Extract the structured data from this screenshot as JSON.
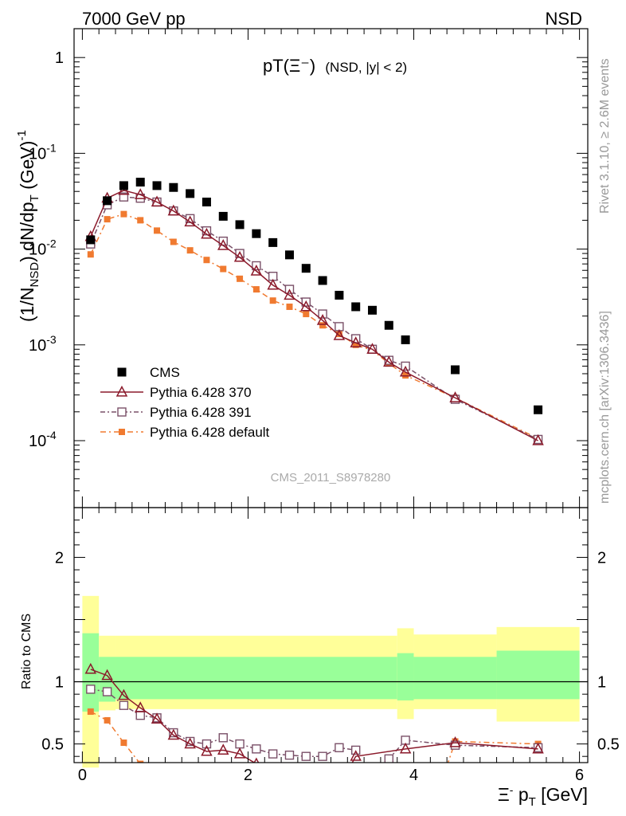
{
  "header": {
    "left": "7000 GeV pp",
    "right": "NSD"
  },
  "side_labels": {
    "rivet": "Rivet 3.1.10, ≥ 2.6M events",
    "mcplots": "mcplots.cern.ch [arXiv:1306.3436]"
  },
  "plot": {
    "title_main": "pT(Ξ⁻)",
    "title_sub": "(NSD, |y| < 2)",
    "watermark": "CMS_2011_S8978280",
    "ylabel": "(1/N_NSD) dN/dp_T (GeV)^-1",
    "xlabel": "Ξ⁻ p_T [GeV]",
    "ratio_ylabel": "Ratio to CMS"
  },
  "legend": [
    {
      "name": "CMS",
      "color": "#000000",
      "marker": "square-filled"
    },
    {
      "name": "Pythia 6.428 370",
      "color": "#8b1a2b",
      "marker": "triangle-open"
    },
    {
      "name": "Pythia 6.428 391",
      "color": "#7a5068",
      "marker": "square-open"
    },
    {
      "name": "Pythia 6.428 default",
      "color": "#f07a30",
      "marker": "square-filled-small"
    }
  ],
  "chart_data": {
    "type": "scatter",
    "xlim": [
      -0.1,
      6.1
    ],
    "ylim": [
      2e-05,
      2
    ],
    "yscale": "log",
    "xticks": [
      0,
      2,
      4,
      6
    ],
    "yticks": [
      "1",
      "10^-1",
      "10^-2",
      "10^-3",
      "10^-4"
    ],
    "series": [
      {
        "name": "CMS",
        "x": [
          0.1,
          0.3,
          0.5,
          0.7,
          0.9,
          1.1,
          1.3,
          1.5,
          1.7,
          1.9,
          2.1,
          2.3,
          2.5,
          2.7,
          2.9,
          3.1,
          3.3,
          3.5,
          3.7,
          3.9,
          4.5,
          5.5
        ],
        "y": [
          0.0125,
          0.032,
          0.046,
          0.05,
          0.046,
          0.044,
          0.038,
          0.031,
          0.022,
          0.018,
          0.0145,
          0.0117,
          0.0087,
          0.0063,
          0.0047,
          0.0033,
          0.0025,
          0.0023,
          0.0016,
          0.00113,
          0.00055,
          0.00021
        ]
      },
      {
        "name": "Pythia 6.428 370",
        "x": [
          0.1,
          0.3,
          0.5,
          0.7,
          0.9,
          1.1,
          1.3,
          1.5,
          1.7,
          1.9,
          2.1,
          2.3,
          2.5,
          2.7,
          2.9,
          3.1,
          3.3,
          3.5,
          3.7,
          3.9,
          4.5,
          5.5
        ],
        "y": [
          0.0135,
          0.034,
          0.041,
          0.037,
          0.031,
          0.025,
          0.0192,
          0.0143,
          0.0109,
          0.0082,
          0.0059,
          0.0042,
          0.0033,
          0.0025,
          0.0018,
          0.00125,
          0.00105,
          0.0009,
          0.00066,
          0.00052,
          0.00028,
          0.0001
        ]
      },
      {
        "name": "Pythia 6.428 391",
        "x": [
          0.1,
          0.3,
          0.5,
          0.7,
          0.9,
          1.1,
          1.3,
          1.5,
          1.7,
          1.9,
          2.1,
          2.3,
          2.5,
          2.7,
          2.9,
          3.1,
          3.3,
          3.5,
          3.7,
          3.9,
          4.5,
          5.5
        ],
        "y": [
          0.0113,
          0.029,
          0.035,
          0.034,
          0.031,
          0.025,
          0.0208,
          0.0155,
          0.0121,
          0.009,
          0.0067,
          0.0052,
          0.0038,
          0.0028,
          0.0021,
          0.00155,
          0.00116,
          0.0009,
          0.00069,
          0.0006,
          0.00027,
          0.000103
        ]
      },
      {
        "name": "Pythia 6.428 default",
        "x": [
          0.1,
          0.3,
          0.5,
          0.7,
          0.9,
          1.1,
          1.3,
          1.5,
          1.7,
          1.9,
          2.1,
          2.3,
          2.5,
          2.7,
          2.9,
          3.1,
          3.3,
          3.5,
          3.7,
          3.9,
          4.5,
          5.5
        ],
        "y": [
          0.0088,
          0.0205,
          0.0232,
          0.02,
          0.0156,
          0.0119,
          0.0097,
          0.0077,
          0.0062,
          0.0049,
          0.0038,
          0.0029,
          0.0025,
          0.0021,
          0.0016,
          0.0013,
          0.001,
          0.00088,
          0.00064,
          0.00048,
          0.00028,
          0.000105
        ]
      }
    ],
    "ratio": {
      "ylim": [
        0.35,
        2.4
      ],
      "yticks": [
        0.5,
        1,
        2
      ],
      "band_bins": [
        {
          "x": [
            0.0,
            0.2
          ],
          "inner": [
            0.76,
            1.39
          ],
          "outer": [
            0.31,
            1.69
          ]
        },
        {
          "x": [
            0.2,
            0.4
          ],
          "inner": [
            0.84,
            1.2
          ],
          "outer": [
            0.77,
            1.37
          ]
        },
        {
          "x": [
            0.4,
            3.8
          ],
          "inner": [
            0.86,
            1.2
          ],
          "outer": [
            0.78,
            1.37
          ]
        },
        {
          "x": [
            3.8,
            4.0
          ],
          "inner": [
            0.85,
            1.23
          ],
          "outer": [
            0.7,
            1.43
          ]
        },
        {
          "x": [
            4.0,
            5.0
          ],
          "inner": [
            0.86,
            1.2
          ],
          "outer": [
            0.78,
            1.38
          ]
        },
        {
          "x": [
            5.0,
            6.0
          ],
          "inner": [
            0.86,
            1.25
          ],
          "outer": [
            0.68,
            1.44
          ]
        }
      ],
      "series": [
        {
          "name": "Pythia 6.428 370",
          "x": [
            0.1,
            0.3,
            0.5,
            0.7,
            0.9,
            1.1,
            1.3,
            1.5,
            1.7,
            1.9,
            2.1,
            3.3,
            3.9,
            4.5,
            5.5
          ],
          "y": [
            1.1,
            1.05,
            0.89,
            0.79,
            0.7,
            0.57,
            0.5,
            0.44,
            0.45,
            0.42,
            0.34,
            0.4,
            0.46,
            0.51,
            0.46
          ]
        },
        {
          "name": "Pythia 6.428 391",
          "x": [
            0.1,
            0.3,
            0.5,
            0.7,
            0.9,
            1.1,
            1.3,
            1.5,
            1.7,
            1.9,
            2.1,
            2.3,
            2.5,
            2.7,
            2.9,
            3.1,
            3.3,
            3.7,
            3.9,
            4.5,
            5.5
          ],
          "y": [
            0.94,
            0.92,
            0.81,
            0.73,
            0.71,
            0.59,
            0.52,
            0.5,
            0.55,
            0.5,
            0.46,
            0.42,
            0.41,
            0.4,
            0.4,
            0.47,
            0.45,
            0.38,
            0.53,
            0.49,
            0.47
          ]
        },
        {
          "name": "Pythia 6.428 default",
          "x": [
            0.1,
            0.3,
            0.5,
            0.7,
            4.5,
            5.5
          ],
          "y": [
            0.76,
            0.69,
            0.51,
            0.34,
            0.52,
            0.5
          ]
        }
      ]
    }
  }
}
